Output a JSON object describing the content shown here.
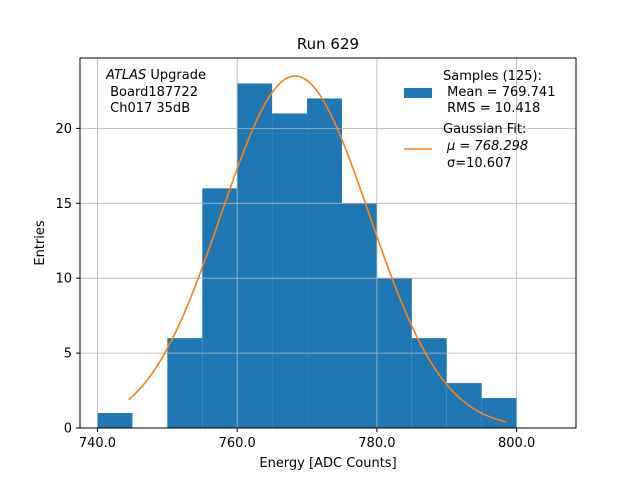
{
  "chart_data": {
    "type": "bar",
    "title": "Run 629",
    "xlabel": "Energy [ADC Counts]",
    "ylabel": "Entries",
    "xlim": [
      737.5,
      808.5
    ],
    "ylim": [
      0,
      24.7
    ],
    "xticks": [
      740,
      760,
      780,
      800
    ],
    "xtick_labels": [
      "740.0",
      "760.0",
      "780.0",
      "800.0"
    ],
    "yticks": [
      0,
      5,
      10,
      15,
      20
    ],
    "ytick_labels": [
      "0",
      "5",
      "10",
      "15",
      "20"
    ],
    "grid": true,
    "bins": [
      {
        "x0": 740,
        "x1": 745,
        "count": 1
      },
      {
        "x0": 745,
        "x1": 750,
        "count": 0
      },
      {
        "x0": 750,
        "x1": 755,
        "count": 6
      },
      {
        "x0": 755,
        "x1": 760,
        "count": 16
      },
      {
        "x0": 760,
        "x1": 765,
        "count": 23
      },
      {
        "x0": 765,
        "x1": 770,
        "count": 21
      },
      {
        "x0": 770,
        "x1": 775,
        "count": 22
      },
      {
        "x0": 775,
        "x1": 780,
        "count": 15
      },
      {
        "x0": 780,
        "x1": 785,
        "count": 10
      },
      {
        "x0": 785,
        "x1": 790,
        "count": 6
      },
      {
        "x0": 790,
        "x1": 795,
        "count": 3
      },
      {
        "x0": 795,
        "x1": 800,
        "count": 2
      }
    ],
    "fit": {
      "amplitude": 23.5,
      "mu": 768.298,
      "sigma": 10.607,
      "x_start": 744.5,
      "x_end": 798.5
    },
    "colors": {
      "bars": "#1f77b4",
      "fit": "#ff7f0e",
      "grid": "#b0b0b0"
    },
    "annotation": {
      "line1_italic": "ATLAS",
      "line1_rest": " Upgrade",
      "line2": " Board187722",
      "line3": " Ch017 35dB"
    },
    "legend": {
      "placement": "top-right",
      "samples_label": "Samples (125):",
      "samples_mean": " Mean = 769.741",
      "samples_rms": " RMS = 10.418",
      "fit_label": "Gaussian Fit:",
      "fit_mu": "μ = 768.298",
      "fit_sigma": "σ=10.607"
    }
  }
}
